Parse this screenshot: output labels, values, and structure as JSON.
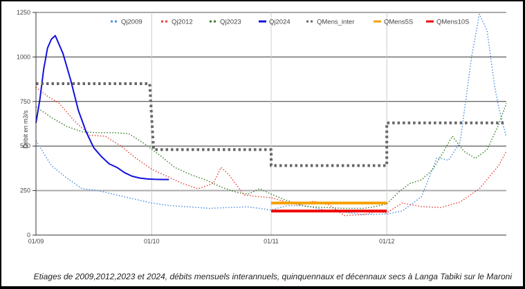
{
  "caption": "Etiages de 2009,2012,2023 et 2024,  débits mensuels interannuels, quinquennaux et décennaux secs à Langa Tabiki sur le Maroni",
  "chart_data": {
    "type": "line",
    "title": "",
    "caption": "Etiages de 2009,2012,2023 et 2024,  débits mensuels interannuels, quinquennaux et décennaux secs à Langa Tabiki sur le Maroni",
    "xlabel": "",
    "ylabel": "Débit en m3/s",
    "ylim": [
      0,
      1250
    ],
    "yticks": [
      0,
      250,
      500,
      750,
      1000,
      1250
    ],
    "x_unit": "day since 01/09",
    "xlim": [
      0,
      122
    ],
    "xticks": [
      {
        "day": 0,
        "label": "01/09"
      },
      {
        "day": 30,
        "label": "01/10"
      },
      {
        "day": 61,
        "label": "01/11"
      },
      {
        "day": 91,
        "label": "01/12"
      }
    ],
    "legend_position": "top",
    "grid": "horizontal",
    "series": [
      {
        "name": "Qj2009",
        "color": "#4a90e2",
        "style": "dotted",
        "x": [
          0,
          4,
          8,
          12,
          16,
          20,
          25,
          30,
          35,
          40,
          45,
          50,
          55,
          58,
          61,
          65,
          70,
          75,
          80,
          85,
          91,
          95,
          100,
          104,
          107,
          110,
          113,
          115,
          117,
          119,
          120,
          122
        ],
        "values": [
          530,
          390,
          320,
          260,
          250,
          230,
          205,
          180,
          165,
          158,
          150,
          155,
          158,
          150,
          140,
          165,
          165,
          140,
          128,
          115,
          118,
          135,
          215,
          435,
          420,
          520,
          1000,
          1240,
          1150,
          830,
          720,
          550
        ]
      },
      {
        "name": "Qj2012",
        "color": "#e8443a",
        "style": "dotted",
        "x": [
          0,
          3,
          6,
          10,
          14,
          18,
          22,
          26,
          30,
          34,
          38,
          42,
          46,
          48,
          50,
          54,
          58,
          61,
          65,
          68,
          72,
          76,
          80,
          85,
          88,
          91,
          95,
          100,
          105,
          110,
          115,
          120,
          122
        ],
        "values": [
          830,
          780,
          740,
          640,
          560,
          555,
          500,
          430,
          370,
          330,
          290,
          260,
          290,
          380,
          340,
          225,
          215,
          210,
          185,
          170,
          190,
          170,
          110,
          115,
          130,
          125,
          180,
          160,
          155,
          185,
          260,
          390,
          470
        ]
      },
      {
        "name": "Qj2023",
        "color": "#3a7d2a",
        "style": "dotted",
        "x": [
          0,
          4,
          8,
          12,
          16,
          20,
          24,
          28,
          32,
          36,
          40,
          44,
          48,
          52,
          55,
          58,
          61,
          65,
          70,
          75,
          80,
          85,
          88,
          91,
          94,
          97,
          100,
          103,
          106,
          108,
          111,
          114,
          117,
          120,
          122
        ],
        "values": [
          720,
          660,
          610,
          580,
          575,
          575,
          570,
          515,
          450,
          380,
          340,
          310,
          270,
          240,
          230,
          260,
          230,
          195,
          160,
          155,
          150,
          150,
          160,
          175,
          240,
          290,
          310,
          370,
          480,
          555,
          470,
          430,
          480,
          620,
          740
        ]
      },
      {
        "name": "Qj2024",
        "color": "#1010dd",
        "style": "solid",
        "x": [
          0,
          1,
          2,
          3,
          4,
          5,
          7,
          9,
          11,
          13,
          15,
          17,
          19,
          21,
          23,
          25,
          27,
          29,
          31,
          33,
          34.5
        ],
        "values": [
          630,
          760,
          930,
          1050,
          1100,
          1120,
          1020,
          870,
          700,
          580,
          490,
          440,
          400,
          380,
          350,
          330,
          320,
          315,
          313,
          312,
          312
        ]
      },
      {
        "name": "QMens_inter",
        "color": "#666666",
        "style": "dotted-thick",
        "x": [
          0,
          29.5,
          30.5,
          61,
          61,
          91,
          91,
          122
        ],
        "values": [
          850,
          850,
          480,
          480,
          390,
          390,
          630,
          630
        ]
      },
      {
        "name": "QMens5S",
        "color": "#f5a000",
        "style": "solid-thick",
        "x": [
          61,
          91
        ],
        "values": [
          180,
          180
        ]
      },
      {
        "name": "QMens10S",
        "color": "#ee0000",
        "style": "solid-thick",
        "x": [
          61,
          91
        ],
        "values": [
          135,
          135
        ]
      }
    ]
  }
}
